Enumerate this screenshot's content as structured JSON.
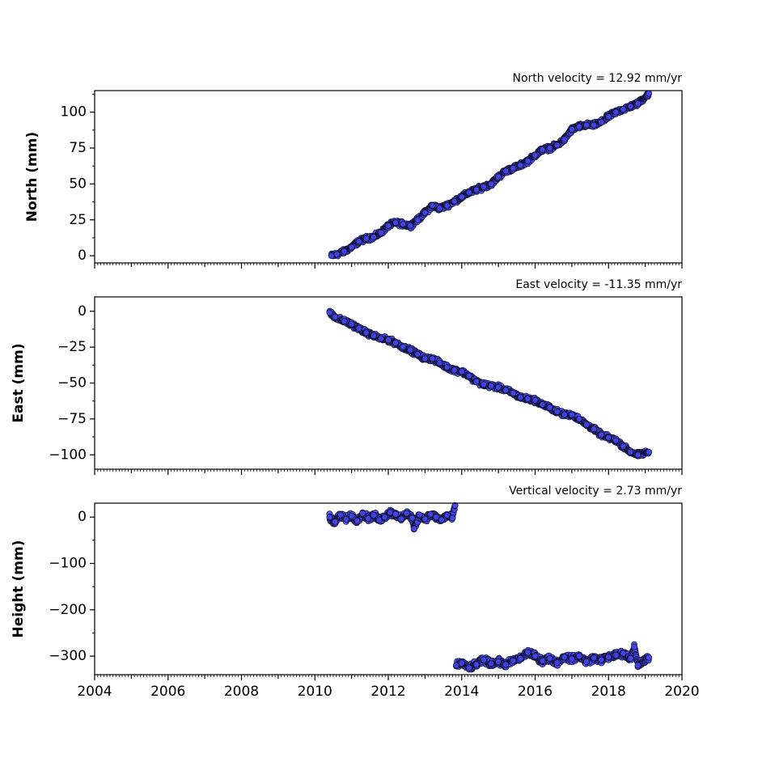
{
  "chart_data": [
    {
      "type": "scatter",
      "title": "North velocity = 12.92 mm/yr",
      "xlabel": "",
      "ylabel": "North (mm)",
      "xlim": [
        2004,
        2020
      ],
      "ylim": [
        -5,
        115
      ],
      "yticks": [
        0,
        25,
        50,
        75,
        100
      ],
      "ytick_labels": [
        "0",
        "25",
        "50",
        "75",
        "100"
      ],
      "grid": false,
      "marker_color": "#4747ee",
      "edge_color": "#111133",
      "series": [
        {
          "values": [
            [
              2010.45,
              0
            ],
            [
              2010.6,
              1
            ],
            [
              2010.8,
              3
            ],
            [
              2011.0,
              6
            ],
            [
              2011.2,
              10
            ],
            [
              2011.4,
              12
            ],
            [
              2011.6,
              13
            ],
            [
              2011.8,
              16
            ],
            [
              2012.0,
              21
            ],
            [
              2012.2,
              23
            ],
            [
              2012.4,
              22
            ],
            [
              2012.6,
              21
            ],
            [
              2012.8,
              25
            ],
            [
              2013.0,
              30
            ],
            [
              2013.2,
              35
            ],
            [
              2013.4,
              33
            ],
            [
              2013.6,
              35
            ],
            [
              2013.8,
              38
            ],
            [
              2014.0,
              41
            ],
            [
              2014.2,
              44
            ],
            [
              2014.4,
              46
            ],
            [
              2014.6,
              48
            ],
            [
              2014.8,
              50
            ],
            [
              2015.0,
              55
            ],
            [
              2015.2,
              59
            ],
            [
              2015.4,
              61
            ],
            [
              2015.6,
              63
            ],
            [
              2015.8,
              66
            ],
            [
              2016.0,
              70
            ],
            [
              2016.2,
              74
            ],
            [
              2016.4,
              75
            ],
            [
              2016.6,
              77
            ],
            [
              2016.8,
              81
            ],
            [
              2017.0,
              88
            ],
            [
              2017.2,
              90
            ],
            [
              2017.4,
              91
            ],
            [
              2017.6,
              91
            ],
            [
              2017.8,
              93
            ],
            [
              2018.0,
              97
            ],
            [
              2018.2,
              100
            ],
            [
              2018.4,
              102
            ],
            [
              2018.6,
              104
            ],
            [
              2018.8,
              106
            ],
            [
              2019.1,
              113
            ]
          ]
        }
      ]
    },
    {
      "type": "scatter",
      "title": "East velocity = -11.35 mm/yr",
      "xlabel": "",
      "ylabel": "East (mm)",
      "xlim": [
        2004,
        2020
      ],
      "ylim": [
        -110,
        10
      ],
      "yticks": [
        0,
        -25,
        -50,
        -75,
        -100
      ],
      "ytick_labels": [
        "0",
        "−25",
        "−50",
        "−75",
        "−100"
      ],
      "grid": false,
      "series": [
        {
          "values": [
            [
              2010.4,
              -1
            ],
            [
              2010.55,
              -4
            ],
            [
              2010.8,
              -7
            ],
            [
              2011.0,
              -9
            ],
            [
              2011.2,
              -12
            ],
            [
              2011.4,
              -15
            ],
            [
              2011.6,
              -17
            ],
            [
              2011.8,
              -19
            ],
            [
              2012.0,
              -20
            ],
            [
              2012.2,
              -22
            ],
            [
              2012.4,
              -25
            ],
            [
              2012.6,
              -27
            ],
            [
              2012.8,
              -30
            ],
            [
              2013.0,
              -33
            ],
            [
              2013.2,
              -33
            ],
            [
              2013.4,
              -36
            ],
            [
              2013.6,
              -39
            ],
            [
              2013.8,
              -41
            ],
            [
              2014.0,
              -42
            ],
            [
              2014.2,
              -45
            ],
            [
              2014.4,
              -49
            ],
            [
              2014.6,
              -51
            ],
            [
              2014.8,
              -52
            ],
            [
              2015.0,
              -53
            ],
            [
              2015.2,
              -55
            ],
            [
              2015.4,
              -57
            ],
            [
              2015.6,
              -60
            ],
            [
              2015.8,
              -61
            ],
            [
              2016.0,
              -62
            ],
            [
              2016.2,
              -65
            ],
            [
              2016.4,
              -67
            ],
            [
              2016.6,
              -70
            ],
            [
              2016.8,
              -72
            ],
            [
              2017.0,
              -72
            ],
            [
              2017.2,
              -75
            ],
            [
              2017.4,
              -79
            ],
            [
              2017.6,
              -82
            ],
            [
              2017.8,
              -86
            ],
            [
              2018.0,
              -88
            ],
            [
              2018.2,
              -90
            ],
            [
              2018.4,
              -94
            ],
            [
              2018.6,
              -98
            ],
            [
              2018.8,
              -100
            ],
            [
              2019.1,
              -98
            ]
          ]
        }
      ]
    },
    {
      "type": "scatter",
      "title": "Vertical velocity = 2.73 mm/yr",
      "xlabel": "",
      "ylabel": "Height (mm)",
      "xlim": [
        2004,
        2020
      ],
      "ylim": [
        -340,
        30
      ],
      "yticks": [
        0,
        -100,
        -200,
        -300
      ],
      "ytick_labels": [
        "0",
        "−100",
        "−200",
        "−300"
      ],
      "xticks": [
        2004,
        2006,
        2008,
        2010,
        2012,
        2014,
        2016,
        2018,
        2020
      ],
      "xtick_labels": [
        "2004",
        "2006",
        "2008",
        "2010",
        "2012",
        "2014",
        "2016",
        "2018",
        "2020"
      ],
      "grid": false,
      "series": [
        {
          "values": [
            [
              2010.4,
              0
            ],
            [
              2010.55,
              -10
            ],
            [
              2010.7,
              5
            ],
            [
              2010.85,
              -5
            ],
            [
              2011.0,
              2
            ],
            [
              2011.15,
              -8
            ],
            [
              2011.3,
              8
            ],
            [
              2011.45,
              -3
            ],
            [
              2011.6,
              4
            ],
            [
              2011.75,
              -6
            ],
            [
              2011.9,
              0
            ],
            [
              2012.05,
              10
            ],
            [
              2012.2,
              6
            ],
            [
              2012.35,
              -4
            ],
            [
              2012.5,
              8
            ],
            [
              2012.65,
              -2
            ],
            [
              2012.7,
              -25
            ],
            [
              2012.85,
              5
            ],
            [
              2013.0,
              -4
            ],
            [
              2013.15,
              6
            ],
            [
              2013.3,
              0
            ],
            [
              2013.45,
              -6
            ],
            [
              2013.6,
              4
            ],
            [
              2013.75,
              -2
            ],
            [
              2013.82,
              25
            ],
            [
              2013.85,
              -320
            ],
            [
              2014.0,
              -315
            ],
            [
              2014.2,
              -325
            ],
            [
              2014.4,
              -318
            ],
            [
              2014.6,
              -308
            ],
            [
              2014.8,
              -316
            ],
            [
              2015.0,
              -312
            ],
            [
              2015.2,
              -318
            ],
            [
              2015.4,
              -310
            ],
            [
              2015.6,
              -305
            ],
            [
              2015.8,
              -292
            ],
            [
              2016.0,
              -300
            ],
            [
              2016.2,
              -310
            ],
            [
              2016.4,
              -305
            ],
            [
              2016.6,
              -314
            ],
            [
              2016.8,
              -302
            ],
            [
              2017.0,
              -306
            ],
            [
              2017.2,
              -300
            ],
            [
              2017.4,
              -312
            ],
            [
              2017.6,
              -304
            ],
            [
              2017.8,
              -308
            ],
            [
              2018.0,
              -302
            ],
            [
              2018.2,
              -298
            ],
            [
              2018.4,
              -294
            ],
            [
              2018.6,
              -305
            ],
            [
              2018.7,
              -280
            ],
            [
              2018.8,
              -320
            ],
            [
              2019.1,
              -303
            ]
          ]
        }
      ]
    }
  ]
}
